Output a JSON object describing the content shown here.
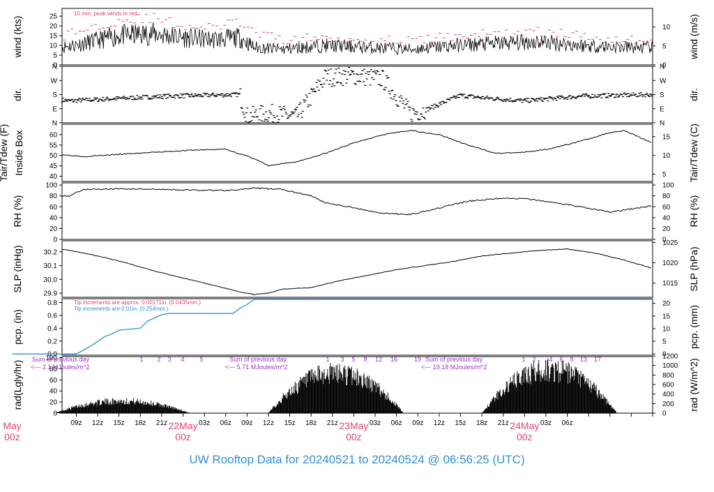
{
  "footer": {
    "title": "UW Rooftop Data for 20240521  to  20240524 @ 06:56:25  (UTC)"
  },
  "colors": {
    "accent_red": "#e0436b",
    "accent_blue": "#2f8fd6",
    "accent_purple": "#9b30c8",
    "trace": "#000000"
  },
  "chart_data": [
    {
      "type": "line",
      "panel": "wind",
      "ylabel": "wind (kts)",
      "ylabel_right": "wind (m/s)",
      "yticks": [
        0,
        5,
        10,
        15,
        20,
        25
      ],
      "yticks_right": [
        0,
        5,
        10
      ],
      "ylim": [
        0,
        29
      ],
      "annotation": "10 min. peak winds in red",
      "x_hours": [
        0,
        5,
        10,
        15,
        20,
        24,
        28,
        32,
        34,
        38,
        44,
        50,
        56,
        62,
        68,
        74,
        80,
        86,
        90
      ],
      "series": [
        {
          "values": [
            6,
            8,
            11,
            15,
            16,
            14,
            13,
            14,
            9,
            8,
            10,
            9,
            8,
            10,
            11,
            12,
            10,
            9,
            9
          ]
        },
        {
          "values": [
            10,
            13,
            18,
            23,
            24,
            20,
            19,
            22,
            16,
            13,
            14,
            13,
            12,
            15,
            16,
            17,
            15,
            13,
            13
          ]
        }
      ]
    },
    {
      "type": "scatter",
      "panel": "dir",
      "ylabel": "dir.",
      "ylabel_right": "dir.",
      "yticks": [
        "N",
        "E",
        "S",
        "W",
        "N"
      ],
      "ylim": [
        0,
        360
      ],
      "x_hours": [
        0,
        2,
        3,
        8,
        15,
        22,
        32,
        33,
        36,
        40,
        44,
        48,
        52,
        56,
        58,
        63,
        66,
        72,
        80,
        90
      ],
      "values": [
        30,
        60,
        170,
        140,
        155,
        170,
        180,
        40,
        60,
        40,
        290,
        300,
        280,
        60,
        80,
        175,
        160,
        140,
        170,
        180
      ]
    },
    {
      "type": "line",
      "panel": "temp",
      "ylabel": "Tair/Tdew (F)",
      "ylabel2": "Inside Box",
      "ylabel_right": "Tair/Tdew (C)",
      "yticks": [
        40,
        45,
        50,
        55,
        60
      ],
      "yticks_right": [
        5,
        10,
        15
      ],
      "ylim": [
        37.5,
        65
      ],
      "x_hours": [
        0,
        5,
        10,
        15,
        20,
        25,
        30,
        34,
        36,
        40,
        44,
        48,
        52,
        56,
        60,
        64,
        68,
        72,
        76,
        80,
        84,
        86,
        90
      ],
      "values": [
        54,
        51,
        49.5,
        50.5,
        51.5,
        52.5,
        53,
        48.5,
        45,
        47,
        51,
        56,
        60,
        62,
        60,
        55,
        51,
        51.5,
        53.5,
        57,
        61,
        62,
        56
      ]
    },
    {
      "type": "line",
      "panel": "rh",
      "ylabel": "RH (%)",
      "ylabel_right": "RH (%)",
      "yticks": [
        0,
        20,
        40,
        60,
        80,
        100
      ],
      "ylim": [
        0,
        104
      ],
      "x_hours": [
        0,
        4,
        8,
        10,
        16,
        24,
        30,
        34,
        38,
        42,
        44,
        48,
        52,
        56,
        60,
        64,
        68,
        72,
        76,
        80,
        84,
        90
      ],
      "values": [
        70,
        78,
        80,
        92,
        93,
        91,
        90,
        94,
        92,
        80,
        68,
        58,
        48,
        46,
        58,
        70,
        75,
        75,
        68,
        60,
        50,
        62
      ]
    },
    {
      "type": "line",
      "panel": "slp",
      "ylabel": "SLP (inHg)",
      "ylabel_right": "SLP (hPa)",
      "yticks": [
        29.9,
        30.0,
        30.1,
        30.2
      ],
      "yticks_right": [
        1015,
        1020,
        1025
      ],
      "ylim": [
        29.87,
        30.28
      ],
      "x_hours": [
        0,
        4,
        8,
        12,
        16,
        20,
        24,
        28,
        32,
        34,
        36,
        38,
        42,
        46,
        50,
        54,
        58,
        62,
        66,
        70,
        74,
        78,
        82,
        86,
        90
      ],
      "values": [
        30.26,
        30.24,
        30.21,
        30.17,
        30.12,
        30.06,
        30.01,
        29.96,
        29.91,
        29.89,
        29.9,
        29.93,
        29.94,
        29.99,
        30.03,
        30.07,
        30.1,
        30.13,
        30.17,
        30.19,
        30.21,
        30.22,
        30.19,
        30.14,
        30.08
      ]
    },
    {
      "type": "line",
      "panel": "pcp",
      "ylabel": "pcp. (in)",
      "ylabel_right": "pcp. (mm)",
      "yticks": [
        0.0,
        0.2,
        0.4,
        0.6,
        0.8
      ],
      "yticks_right": [
        0,
        5,
        10,
        15,
        20
      ],
      "ylim": [
        -0.02,
        0.86
      ],
      "annotations": [
        "Tip increments are approx. 0.00171in. (0.0435mm.)",
        "Tip increments are 0.01in. (0.254mm.)"
      ],
      "x_hours": [
        0,
        9,
        11,
        13,
        14,
        15,
        18,
        19,
        21,
        22,
        31,
        32,
        33,
        34,
        90
      ],
      "values": [
        0,
        0,
        0.12,
        0.27,
        0.31,
        0.37,
        0.4,
        0.51,
        0.61,
        0.63,
        0.63,
        0.71,
        0.77,
        0.85,
        0.85
      ]
    },
    {
      "type": "bar",
      "panel": "rad",
      "ylabel": "rad(Lgly/hr)",
      "ylabel_right": "rad (W/m^2)",
      "yticks": [
        0,
        20,
        40,
        60,
        80,
        100
      ],
      "yticks_right": [
        0,
        200,
        400,
        600,
        800,
        1000,
        1200
      ],
      "ylim": [
        0,
        102
      ],
      "annotations": [
        "Sum of previous day",
        "<--- 2.1 MJoules/m^2",
        "Sum of previous day",
        "<--- 5.71 MJoules/m^2",
        "Sum of previous day",
        "<--- 19.18 MJoules/m^2"
      ],
      "hour_labels": [
        {
          "day": 1,
          "labels": [
            "1",
            "2",
            "3",
            "4",
            "5"
          ]
        },
        {
          "day": 2,
          "labels": [
            "1",
            "3",
            "5",
            "8",
            "12",
            "16",
            "19"
          ]
        },
        {
          "day": 3,
          "labels": [
            "1",
            "2",
            "4",
            "6",
            "9",
            "13",
            "17"
          ]
        }
      ],
      "days": [
        {
          "start_hour": 6,
          "end_hour": 25,
          "peak": 28
        },
        {
          "start_hour": 36,
          "end_hour": 55,
          "peak": 92
        },
        {
          "start_hour": 66,
          "end_hour": 85,
          "peak": 100
        }
      ]
    }
  ],
  "xaxis": {
    "tick_labels": [
      "09z",
      "12z",
      "15z",
      "18z",
      "21z",
      "03z",
      "06z",
      "09z",
      "12z",
      "15z",
      "18z",
      "21z",
      "03z",
      "06z",
      "09z",
      "12z",
      "15z",
      "18z",
      "21z",
      "03z",
      "06z"
    ],
    "day_labels": [
      {
        "top": "May",
        "bottom": "00z"
      },
      {
        "top": "22May",
        "bottom": "00z"
      },
      {
        "top": "23May",
        "bottom": "00z"
      },
      {
        "top": "24May",
        "bottom": "00z"
      }
    ]
  }
}
